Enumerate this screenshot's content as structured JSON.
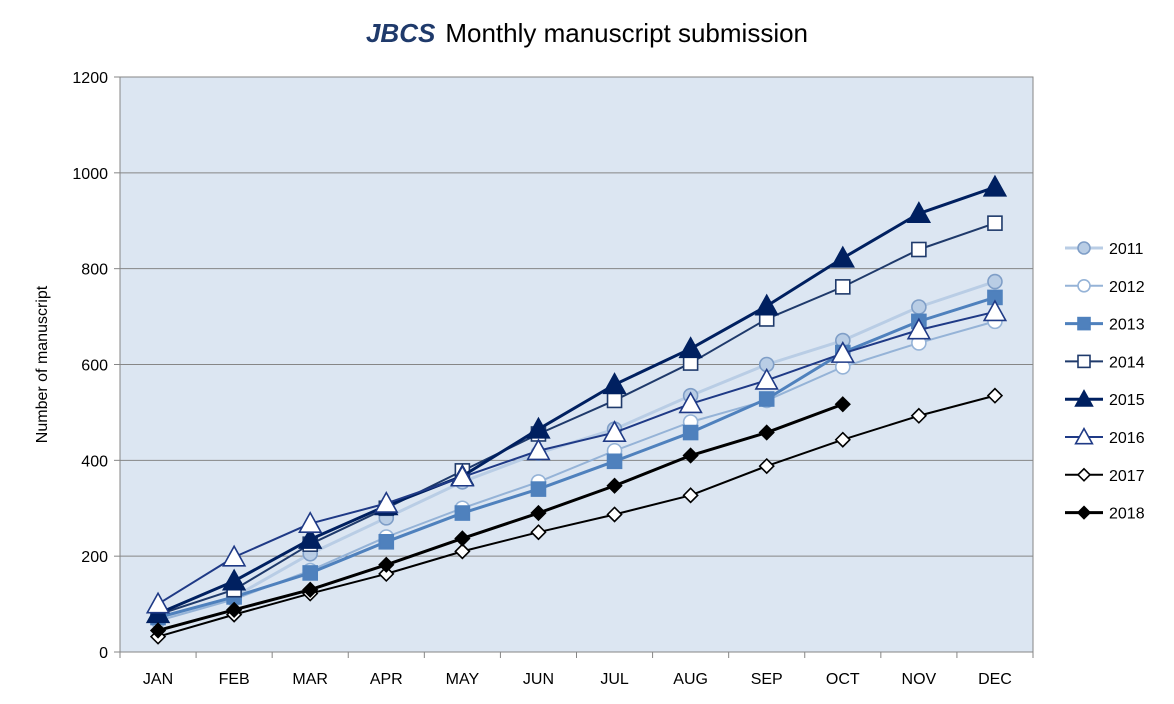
{
  "chart_data": {
    "type": "line",
    "title_brand": "JBCS",
    "title_text": "Monthly manuscript submission",
    "xlabel": "",
    "ylabel": "Number of manuscript",
    "categories": [
      "JAN",
      "FEB",
      "MAR",
      "APR",
      "MAY",
      "JUN",
      "JUL",
      "AUG",
      "SEP",
      "OCT",
      "NOV",
      "DEC"
    ],
    "ylim": [
      0,
      1200
    ],
    "yticks": [
      0,
      200,
      400,
      600,
      800,
      1000,
      1200
    ],
    "grid": "horizontal",
    "legend_position": "right",
    "plot_background": "#dce6f2",
    "series": [
      {
        "name": "2011",
        "color": "#b9cde5",
        "marker": "circle",
        "filled": true,
        "values": [
          70,
          115,
          205,
          280,
          355,
          415,
          465,
          535,
          600,
          650,
          720,
          773
        ]
      },
      {
        "name": "2012",
        "color": "#95b3d7",
        "marker": "circle",
        "filled": false,
        "values": [
          65,
          110,
          170,
          240,
          300,
          355,
          420,
          480,
          525,
          595,
          645,
          690
        ]
      },
      {
        "name": "2013",
        "color": "#4f81bd",
        "marker": "square",
        "filled": true,
        "values": [
          72,
          115,
          165,
          230,
          290,
          340,
          398,
          458,
          528,
          625,
          690,
          740
        ]
      },
      {
        "name": "2014",
        "color": "#1f3a6b",
        "marker": "square",
        "filled": false,
        "values": [
          78,
          130,
          225,
          300,
          378,
          455,
          525,
          603,
          695,
          762,
          840,
          895
        ]
      },
      {
        "name": "2015",
        "color": "#002060",
        "marker": "triangle",
        "filled": true,
        "values": [
          80,
          148,
          235,
          305,
          367,
          465,
          558,
          633,
          722,
          822,
          915,
          970
        ]
      },
      {
        "name": "2016",
        "color": "#1f3a86",
        "marker": "triangle",
        "filled": false,
        "values": [
          100,
          198,
          268,
          310,
          365,
          420,
          458,
          518,
          567,
          623,
          672,
          710
        ]
      },
      {
        "name": "2017",
        "color": "#000000",
        "marker": "diamond",
        "filled": false,
        "values": [
          32,
          78,
          122,
          163,
          210,
          250,
          287,
          327,
          388,
          443,
          493,
          535
        ]
      },
      {
        "name": "2018",
        "color": "#000000",
        "marker": "diamond",
        "filled": true,
        "values": [
          45,
          88,
          130,
          182,
          237,
          290,
          347,
          410,
          458,
          517,
          null,
          null
        ]
      }
    ]
  }
}
